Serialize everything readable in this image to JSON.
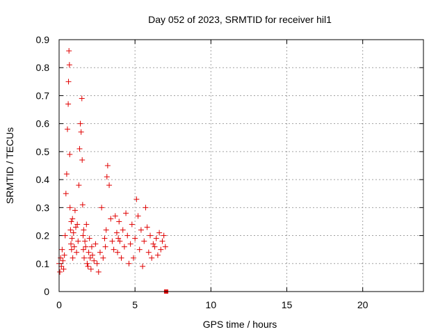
{
  "chart_data": {
    "type": "scatter",
    "title": "Day 052 of 2023, SRMTID for receiver hil1",
    "xlabel": "GPS time / hours",
    "ylabel": "SRMTID / TECUs",
    "xlim": [
      0,
      24
    ],
    "ylim": [
      0,
      0.9
    ],
    "xticks": [
      0,
      5,
      10,
      15,
      20
    ],
    "yticks": [
      0,
      0.1,
      0.2,
      0.3,
      0.4,
      0.5,
      0.6,
      0.7,
      0.8,
      0.9
    ],
    "xtick_labels": [
      "0",
      "5",
      "10",
      "15",
      "20"
    ],
    "ytick_labels": [
      "0",
      "0.1",
      "0.2",
      "0.3",
      "0.4",
      "0.5",
      "0.6",
      "0.7",
      "0.8",
      "0.9"
    ],
    "grid": true,
    "series": [
      {
        "name": "SRMTID",
        "marker": "+",
        "color": "#e00000",
        "x": [
          0.0,
          0.05,
          0.1,
          0.15,
          0.2,
          0.25,
          0.3,
          0.35,
          0.4,
          0.45,
          0.5,
          0.55,
          0.6,
          0.62,
          0.65,
          0.68,
          0.7,
          0.72,
          0.75,
          0.78,
          0.8,
          0.82,
          0.85,
          0.88,
          0.9,
          0.95,
          1.0,
          1.05,
          1.1,
          1.15,
          1.2,
          1.25,
          1.3,
          1.35,
          1.4,
          1.45,
          1.5,
          1.52,
          1.55,
          1.58,
          1.6,
          1.62,
          1.65,
          1.7,
          1.75,
          1.8,
          1.85,
          1.9,
          1.95,
          2.0,
          2.05,
          2.1,
          2.15,
          2.2,
          2.3,
          2.4,
          2.5,
          2.6,
          2.7,
          2.8,
          2.9,
          3.0,
          3.05,
          3.1,
          3.15,
          3.2,
          3.3,
          3.4,
          3.5,
          3.6,
          3.7,
          3.8,
          3.85,
          3.9,
          3.95,
          4.0,
          4.1,
          4.2,
          4.3,
          4.4,
          4.5,
          4.6,
          4.7,
          4.8,
          4.9,
          5.0,
          5.1,
          5.2,
          5.3,
          5.4,
          5.5,
          5.6,
          5.7,
          5.8,
          5.9,
          6.0,
          6.1,
          6.2,
          6.3,
          6.4,
          6.5,
          6.6,
          6.7,
          6.8,
          6.9,
          7.0,
          7.05
        ],
        "y": [
          0.1,
          0.07,
          0.12,
          0.09,
          0.15,
          0.11,
          0.08,
          0.13,
          0.2,
          0.35,
          0.42,
          0.58,
          0.67,
          0.75,
          0.86,
          0.81,
          0.49,
          0.3,
          0.22,
          0.17,
          0.25,
          0.15,
          0.19,
          0.26,
          0.12,
          0.21,
          0.16,
          0.29,
          0.23,
          0.14,
          0.24,
          0.18,
          0.38,
          0.51,
          0.6,
          0.57,
          0.69,
          0.47,
          0.31,
          0.2,
          0.15,
          0.22,
          0.12,
          0.18,
          0.16,
          0.24,
          0.1,
          0.09,
          0.14,
          0.19,
          0.12,
          0.08,
          0.16,
          0.13,
          0.11,
          0.17,
          0.1,
          0.07,
          0.14,
          0.3,
          0.12,
          0.19,
          0.16,
          0.22,
          0.41,
          0.45,
          0.38,
          0.26,
          0.18,
          0.15,
          0.27,
          0.21,
          0.14,
          0.19,
          0.25,
          0.18,
          0.12,
          0.22,
          0.16,
          0.28,
          0.2,
          0.1,
          0.17,
          0.24,
          0.12,
          0.19,
          0.33,
          0.27,
          0.15,
          0.22,
          0.09,
          0.18,
          0.3,
          0.23,
          0.14,
          0.2,
          0.12,
          0.17,
          0.16,
          0.19,
          0.13,
          0.21,
          0.15,
          0.18,
          0.2,
          0.16,
          0.0
        ]
      }
    ]
  }
}
